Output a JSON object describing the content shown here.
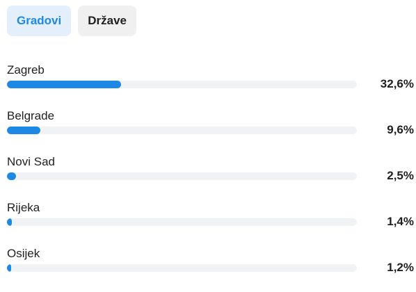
{
  "tabs": [
    {
      "label": "Gradovi",
      "active": true
    },
    {
      "label": "Države",
      "active": false
    }
  ],
  "colors": {
    "accent": "#1e88e5",
    "active_tab_bg": "#e3effb",
    "inactive_tab_bg": "#f0f0f0",
    "track": "#f0f2f4"
  },
  "items": [
    {
      "name": "Zagreb",
      "percent_label": "32,6%",
      "fraction": 0.326
    },
    {
      "name": "Belgrade",
      "percent_label": "9,6%",
      "fraction": 0.096
    },
    {
      "name": "Novi Sad",
      "percent_label": "2,5%",
      "fraction": 0.025
    },
    {
      "name": "Rijeka",
      "percent_label": "1,4%",
      "fraction": 0.014
    },
    {
      "name": "Osijek",
      "percent_label": "1,2%",
      "fraction": 0.012
    }
  ]
}
